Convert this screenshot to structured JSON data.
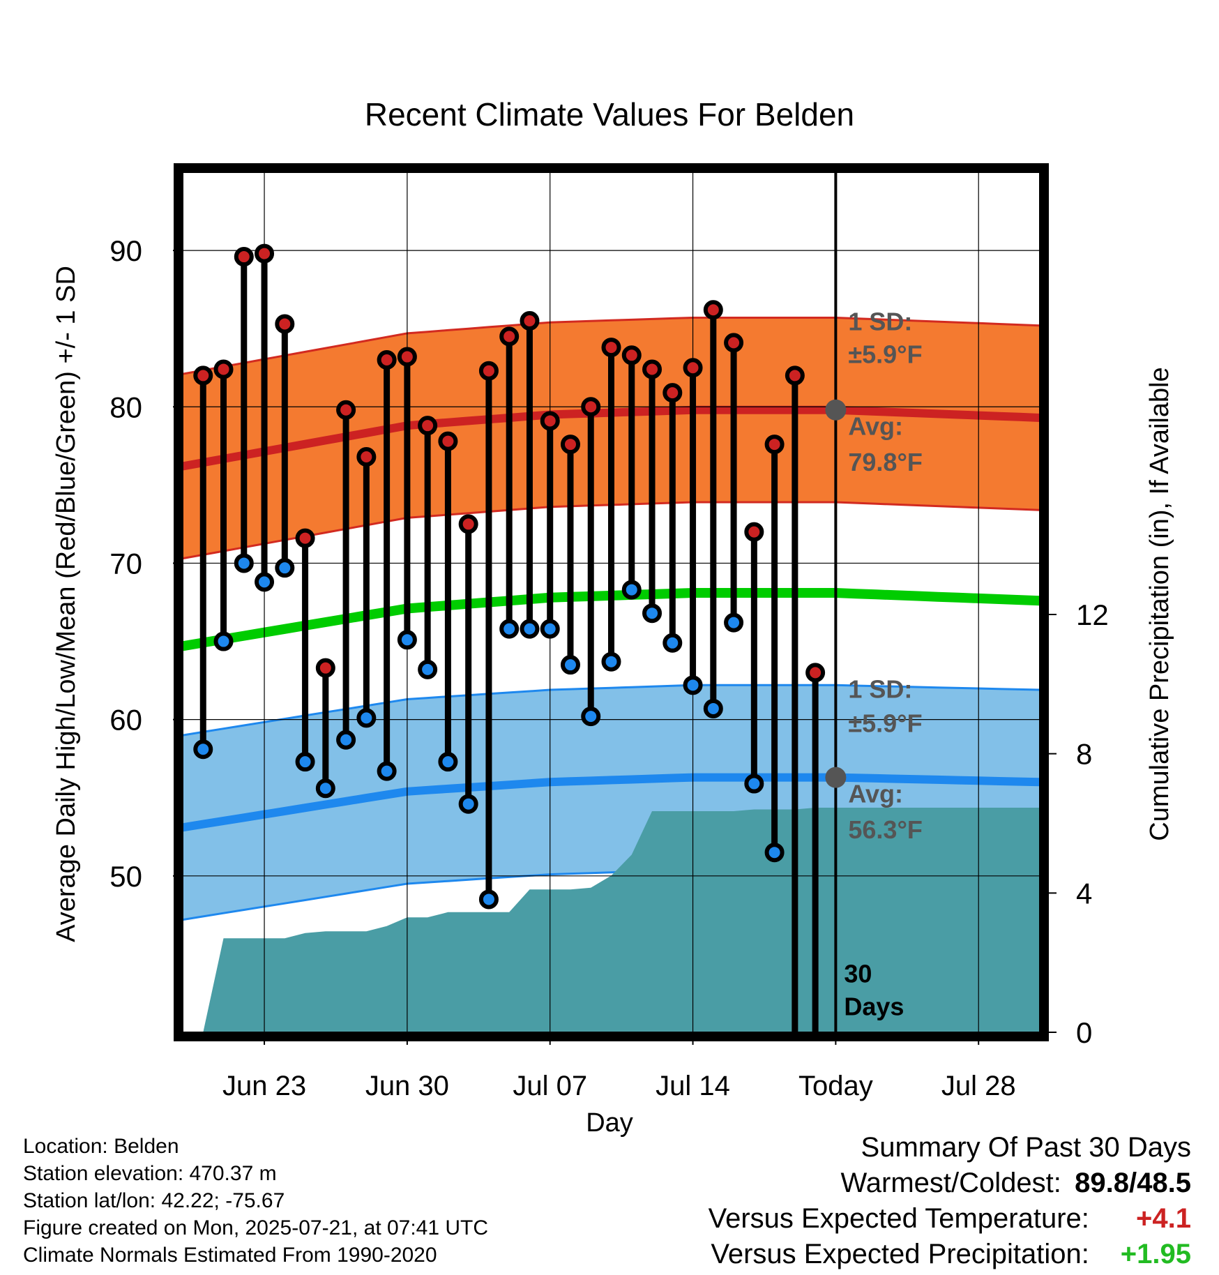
{
  "chart_data": {
    "type": "line",
    "title": "Recent Climate Values For Belden",
    "xlabel": "Day",
    "ylabel": "Average Daily High/Low/Mean (Red/Blue/Green) +/- 1 SD",
    "y2label": "Cumulative Precipitation (in), If Available",
    "ylim": [
      40,
      95
    ],
    "y2lim": [
      0,
      24.7
    ],
    "y_ticks": [
      50,
      60,
      70,
      80,
      90
    ],
    "y2_ticks": [
      0,
      4,
      8,
      12
    ],
    "x_ticks": [
      {
        "date": "2025-06-23",
        "label": "Jun 23"
      },
      {
        "date": "2025-06-30",
        "label": "Jun 30"
      },
      {
        "date": "2025-07-07",
        "label": "Jul 07"
      },
      {
        "date": "2025-07-14",
        "label": "Jul 14"
      },
      {
        "date": "2025-07-21",
        "label": "Today"
      },
      {
        "date": "2025-07-28",
        "label": "Jul 28"
      }
    ],
    "xlim": [
      "2025-06-19",
      "2025-07-31"
    ],
    "grid": true,
    "today_date": "2025-07-21",
    "today_label": "30 Days",
    "days": [
      "2025-06-20",
      "2025-06-21",
      "2025-06-22",
      "2025-06-23",
      "2025-06-24",
      "2025-06-25",
      "2025-06-26",
      "2025-06-27",
      "2025-06-28",
      "2025-06-29",
      "2025-06-30",
      "2025-07-01",
      "2025-07-02",
      "2025-07-03",
      "2025-07-04",
      "2025-07-05",
      "2025-07-06",
      "2025-07-07",
      "2025-07-08",
      "2025-07-09",
      "2025-07-10",
      "2025-07-11",
      "2025-07-12",
      "2025-07-13",
      "2025-07-14",
      "2025-07-15",
      "2025-07-16",
      "2025-07-17",
      "2025-07-18",
      "2025-07-19",
      "2025-07-20"
    ],
    "series": [
      {
        "name": "High",
        "color": "#cc2222",
        "values": [
          82.0,
          82.4,
          89.6,
          89.8,
          85.3,
          71.6,
          63.3,
          79.8,
          76.8,
          83.0,
          83.2,
          78.8,
          77.8,
          72.5,
          82.3,
          84.5,
          85.5,
          79.1,
          77.6,
          80.0,
          83.8,
          83.3,
          82.4,
          80.9,
          82.5,
          86.2,
          84.1,
          72.0,
          77.6,
          82.0,
          63.0
        ],
        "normal": {
          "dates": [
            "2025-06-19",
            "2025-06-30",
            "2025-07-07",
            "2025-07-14",
            "2025-07-21",
            "2025-07-31"
          ],
          "mean": [
            76.2,
            78.8,
            79.5,
            79.8,
            79.8,
            79.3
          ],
          "sd": 5.9
        }
      },
      {
        "name": "Low",
        "color": "#2288ee",
        "values": [
          58.1,
          65.0,
          70.0,
          68.8,
          69.7,
          57.3,
          55.6,
          58.7,
          60.1,
          56.7,
          65.1,
          63.2,
          57.3,
          54.6,
          48.5,
          65.8,
          65.8,
          65.8,
          63.5,
          60.2,
          63.7,
          68.3,
          66.8,
          64.9,
          62.2,
          60.7,
          66.2,
          55.9,
          51.5,
          null,
          null
        ],
        "normal": {
          "dates": [
            "2025-06-19",
            "2025-06-30",
            "2025-07-07",
            "2025-07-14",
            "2025-07-21",
            "2025-07-31"
          ],
          "mean": [
            53.1,
            55.4,
            56.0,
            56.3,
            56.3,
            56.0
          ],
          "sd": 5.9
        }
      },
      {
        "name": "Mean",
        "color": "#00cc00",
        "normal": {
          "dates": [
            "2025-06-19",
            "2025-06-30",
            "2025-07-07",
            "2025-07-14",
            "2025-07-21",
            "2025-07-31"
          ],
          "mean": [
            64.7,
            67.1,
            67.8,
            68.1,
            68.1,
            67.6
          ]
        }
      }
    ],
    "precipitation": {
      "dates": [
        "2025-06-20",
        "2025-06-21",
        "2025-06-22",
        "2025-06-23",
        "2025-06-24",
        "2025-06-25",
        "2025-06-26",
        "2025-06-27",
        "2025-06-28",
        "2025-06-29",
        "2025-06-30",
        "2025-07-01",
        "2025-07-02",
        "2025-07-03",
        "2025-07-04",
        "2025-07-05",
        "2025-07-06",
        "2025-07-07",
        "2025-07-08",
        "2025-07-09",
        "2025-07-10",
        "2025-07-11",
        "2025-07-12",
        "2025-07-13",
        "2025-07-14",
        "2025-07-15",
        "2025-07-16",
        "2025-07-17",
        "2025-07-18",
        "2025-07-19",
        "2025-07-20",
        "2025-07-31"
      ],
      "values": [
        0.0,
        2.7,
        2.7,
        2.7,
        2.7,
        2.85,
        2.9,
        2.9,
        2.9,
        3.05,
        3.3,
        3.3,
        3.45,
        3.45,
        3.45,
        3.45,
        4.1,
        4.1,
        4.1,
        4.15,
        4.5,
        5.1,
        6.35,
        6.35,
        6.35,
        6.35,
        6.35,
        6.4,
        6.4,
        6.4,
        6.45,
        6.45
      ],
      "color": "#4a9da5"
    },
    "annotations": {
      "high_sd_heading": "1 SD:",
      "high_sd_value": "±5.9°F",
      "high_avg_heading": "Avg:",
      "high_avg_value": "79.8°F",
      "low_sd_heading": "1 SD:",
      "low_sd_value": "±5.9°F",
      "low_avg_heading": "Avg:",
      "low_avg_value": "56.3°F"
    }
  },
  "colors": {
    "high_band": "#f47a30",
    "high_band_edge": "#d22a20",
    "low_band": "#82c0e8",
    "low_band_edge": "#1e88ee",
    "today_marker": "#555555"
  },
  "info": {
    "location": "Location: Belden",
    "elevation": "Station elevation: 470.37 m",
    "latlon": "Station lat/lon: 42.22; -75.67",
    "created": "Figure created on Mon, 2025-07-21, at 07:41 UTC",
    "normals": "Climate Normals Estimated From 1990-2020"
  },
  "summary": {
    "heading": "Summary Of Past 30 Days",
    "warm_cold_label": "Warmest/Coldest:",
    "warm_value": "89.8",
    "separator": "/",
    "cold_value": "48.5",
    "temp_label": "Versus Expected Temperature:",
    "temp_value": "+4.1",
    "precip_label": "Versus Expected Precipitation:",
    "precip_value": "+1.95"
  }
}
